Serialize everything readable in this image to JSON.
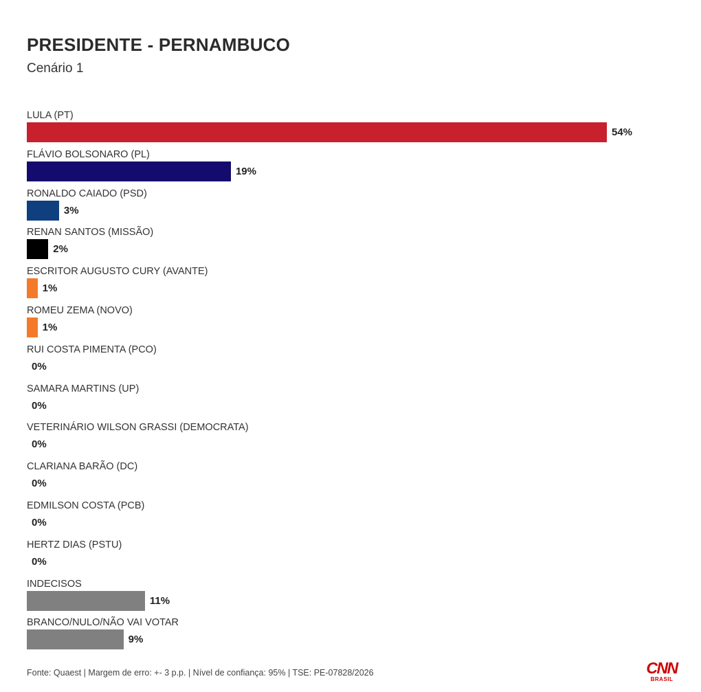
{
  "chart_data": {
    "type": "bar",
    "orientation": "horizontal",
    "title": "PRESIDENTE - PERNAMBUCO",
    "subtitle": "Cenário 1",
    "xlim": [
      0,
      54
    ],
    "grid": false,
    "categories": [
      "LULA (PT)",
      "FLÁVIO BOLSONARO (PL)",
      "RONALDO CAIADO (PSD)",
      "RENAN SANTOS (MISSÃO)",
      "ESCRITOR AUGUSTO CURY (AVANTE)",
      "ROMEU ZEMA (NOVO)",
      "RUI COSTA PIMENTA (PCO)",
      "SAMARA MARTINS (UP)",
      "VETERINÁRIO WILSON GRASSI (DEMOCRATA)",
      "CLARIANA BARÃO (DC)",
      "EDMILSON COSTA (PCB)",
      "HERTZ DIAS (PSTU)",
      "INDECISOS",
      "BRANCO/NULO/NÃO VAI VOTAR"
    ],
    "values": [
      54,
      19,
      3,
      2,
      1,
      1,
      0,
      0,
      0,
      0,
      0,
      0,
      11,
      9
    ],
    "value_labels": [
      "54%",
      "19%",
      "3%",
      "2%",
      "1%",
      "1%",
      "0%",
      "0%",
      "0%",
      "0%",
      "0%",
      "0%",
      "11%",
      "9%"
    ],
    "colors": [
      "#c8202c",
      "#150a6e",
      "#0f3f7e",
      "#000000",
      "#f47a29",
      "#f47a29",
      "#f47a29",
      "#f47a29",
      "#f47a29",
      "#f47a29",
      "#f47a29",
      "#f47a29",
      "#808080",
      "#808080"
    ]
  },
  "footer": "Fonte: Quaest | Margem de erro: +- 3 p.p. | Nível de confiança: 95% | TSE: PE-07828/2026",
  "logo": {
    "main": "CNN",
    "sub": "BRASIL"
  }
}
